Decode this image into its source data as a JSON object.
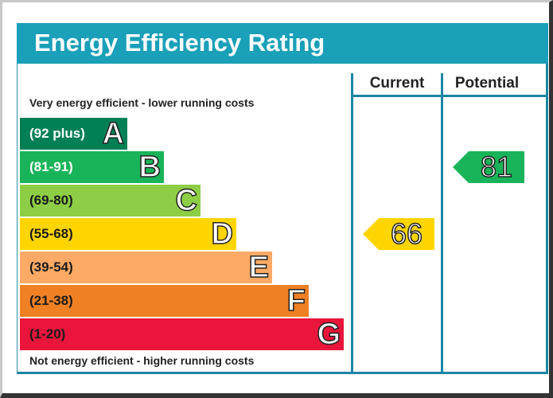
{
  "title": "Energy Efficiency Rating",
  "columns": {
    "current": "Current",
    "potential": "Potential"
  },
  "top_caption": "Very energy efficient - lower running costs",
  "bottom_caption": "Not energy efficient - higher running costs",
  "chart_data": {
    "type": "bar",
    "title": "Energy Efficiency Rating",
    "categories": [
      "A",
      "B",
      "C",
      "D",
      "E",
      "F",
      "G"
    ],
    "bands": [
      {
        "letter": "A",
        "range": "(92 plus)",
        "color": "#008054",
        "dark_text": false
      },
      {
        "letter": "B",
        "range": "(81-91)",
        "color": "#19b459",
        "dark_text": false
      },
      {
        "letter": "C",
        "range": "(69-80)",
        "color": "#8dce46",
        "dark_text": true
      },
      {
        "letter": "D",
        "range": "(55-68)",
        "color": "#ffd500",
        "dark_text": true
      },
      {
        "letter": "E",
        "range": "(39-54)",
        "color": "#fcaa65",
        "dark_text": true
      },
      {
        "letter": "F",
        "range": "(21-38)",
        "color": "#ef8023",
        "dark_text": true
      },
      {
        "letter": "G",
        "range": "(1-20)",
        "color": "#e9153b",
        "dark_text": true
      }
    ],
    "current": {
      "value": 66,
      "band": "D",
      "color": "#ffd500"
    },
    "potential": {
      "value": 81,
      "band": "B",
      "color": "#19b459"
    }
  }
}
